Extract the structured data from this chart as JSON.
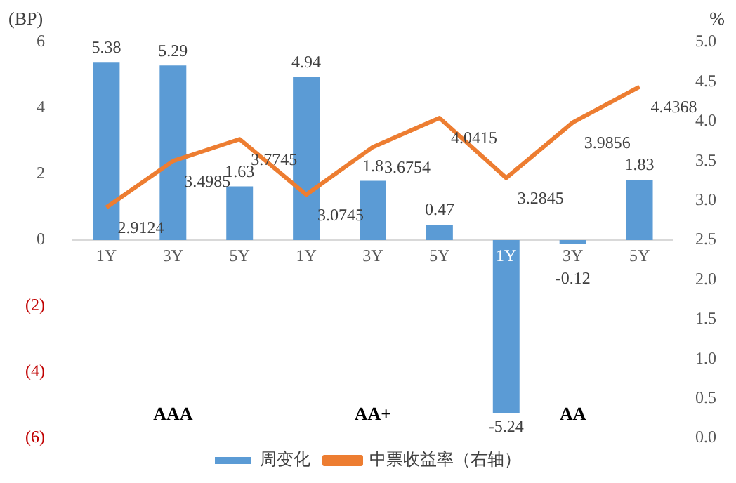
{
  "chart_data": {
    "type": "bar",
    "categories": [
      "1Y",
      "3Y",
      "5Y",
      "1Y",
      "3Y",
      "5Y",
      "1Y",
      "3Y",
      "5Y"
    ],
    "series": [
      {
        "name": "周变化",
        "color": "#5b9bd5",
        "values": [
          5.38,
          5.29,
          1.63,
          4.94,
          1.8,
          0.47,
          -5.24,
          -0.12,
          1.83
        ]
      },
      {
        "name": "中票收益率（右轴）",
        "type": "line",
        "axis": "y2",
        "color": "#ed7d31",
        "values": [
          2.9124,
          3.4985,
          3.7745,
          3.0745,
          3.6754,
          4.0415,
          3.2845,
          3.9856,
          4.4368
        ]
      }
    ],
    "ylabel": "(BP)",
    "y2label": "%",
    "ylim": [
      -6,
      6
    ],
    "yticks": [
      {
        "value": -6,
        "label": "(6)"
      },
      {
        "value": -4,
        "label": "(4)"
      },
      {
        "value": -2,
        "label": "(2)"
      },
      0,
      2,
      4,
      6
    ],
    "y2lim": [
      0,
      5
    ],
    "y2ticks": [
      {
        "value": 0,
        "label": "0.0"
      },
      {
        "value": 0.5,
        "label": "0.5"
      },
      {
        "value": 1,
        "label": "1.0"
      },
      {
        "value": 1.5,
        "label": "1.5"
      },
      {
        "value": 2,
        "label": "2.0"
      },
      {
        "value": 2.5,
        "label": "2.5"
      },
      {
        "value": 3,
        "label": "3.0"
      },
      {
        "value": 3.5,
        "label": "3.5"
      },
      {
        "value": 4,
        "label": "4.0"
      },
      {
        "value": 4.5,
        "label": "4.5"
      },
      {
        "value": 5,
        "label": "5.0"
      }
    ],
    "annotations": [
      "AAA",
      "AA+",
      "AA"
    ],
    "data_labels": true,
    "grid": false,
    "legend": "bottom",
    "marker": "none"
  }
}
